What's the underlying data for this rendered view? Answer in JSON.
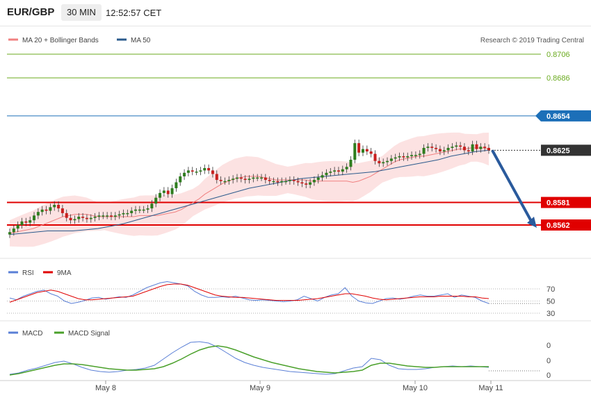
{
  "header": {
    "symbol": "EUR/GBP",
    "timeframe": "30 MIN",
    "time": "12:52:57 CET"
  },
  "legend_main": [
    {
      "name": "MA 20 + Bollinger Bands",
      "color": "#f08080"
    },
    {
      "name": "MA 50",
      "color": "#2a5a8c"
    }
  ],
  "copyright": "Research © 2019 Trading Central",
  "legend_rsi": [
    {
      "name": "RSI",
      "color": "#5a7fd6"
    },
    {
      "name": "9MA",
      "color": "#e00000"
    }
  ],
  "legend_macd": [
    {
      "name": "MACD",
      "color": "#5a7fd6"
    },
    {
      "name": "MACD Signal",
      "color": "#4aa02a"
    }
  ],
  "chart_data": [
    {
      "type": "candlestick",
      "y_axis_levels": [
        {
          "value": "0.8706",
          "color": "#6aaa1e",
          "style": "target"
        },
        {
          "value": "0.8686",
          "color": "#6aaa1e",
          "style": "target"
        },
        {
          "value": "0.8654",
          "color": "#1c6fb8",
          "style": "pivot"
        },
        {
          "value": "0.8625",
          "color": "#333333",
          "style": "last-price"
        },
        {
          "value": "0.8581",
          "color": "#e00000",
          "style": "support"
        },
        {
          "value": "0.8562",
          "color": "#e00000",
          "style": "support"
        }
      ],
      "x_labels": [
        "May 8",
        "May 9",
        "May 10",
        "May 11"
      ],
      "last_price": 0.8625,
      "forecast_arrow": {
        "from": 0.8625,
        "to": 0.8562,
        "color": "#2a5a9c"
      },
      "closes": [
        0.8556,
        0.8559,
        0.8562,
        0.8565,
        0.8564,
        0.8566,
        0.857,
        0.8573,
        0.8575,
        0.8574,
        0.8577,
        0.8579,
        0.8576,
        0.8572,
        0.8568,
        0.8566,
        0.8567,
        0.8569,
        0.8568,
        0.8567,
        0.8568,
        0.8569,
        0.857,
        0.857,
        0.857,
        0.8569,
        0.857,
        0.8571,
        0.8572,
        0.8572,
        0.8574,
        0.8575,
        0.8575,
        0.8575,
        0.8576,
        0.858,
        0.8585,
        0.8589,
        0.8591,
        0.8588,
        0.8593,
        0.8598,
        0.8603,
        0.8606,
        0.8608,
        0.8607,
        0.8607,
        0.8608,
        0.861,
        0.8608,
        0.8605,
        0.86,
        0.8599,
        0.8599,
        0.86,
        0.8601,
        0.8602,
        0.8601,
        0.86,
        0.8601,
        0.8602,
        0.8602,
        0.8602,
        0.86,
        0.8599,
        0.8599,
        0.8598,
        0.8599,
        0.8599,
        0.86,
        0.8599,
        0.8598,
        0.8597,
        0.8596,
        0.8598,
        0.86,
        0.8602,
        0.8604,
        0.8606,
        0.8607,
        0.8608,
        0.8607,
        0.8609,
        0.8611,
        0.8617,
        0.8631,
        0.8623,
        0.8626,
        0.8624,
        0.8622,
        0.8616,
        0.8614,
        0.8615,
        0.8616,
        0.8618,
        0.8619,
        0.862,
        0.8619,
        0.862,
        0.8621,
        0.8621,
        0.8622,
        0.8627,
        0.8628,
        0.8627,
        0.8626,
        0.8624,
        0.8625,
        0.8627,
        0.8628,
        0.8629,
        0.8628,
        0.8625,
        0.8624,
        0.863,
        0.8626,
        0.8628,
        0.8627,
        0.8625
      ],
      "ma20": [
        0.8555,
        0.8556,
        0.8557,
        0.8558,
        0.8559,
        0.8561,
        0.8563,
        0.8565,
        0.8567,
        0.8569,
        0.857,
        0.8571,
        0.8571,
        0.8571,
        0.857,
        0.8569,
        0.8569,
        0.8569,
        0.8569,
        0.8569,
        0.8569,
        0.8569,
        0.857,
        0.857,
        0.857,
        0.857,
        0.8571,
        0.8572,
        0.8573,
        0.8575,
        0.8578,
        0.8581,
        0.8584,
        0.8588,
        0.8591,
        0.8594,
        0.8597,
        0.8599,
        0.8601,
        0.8602,
        0.8603,
        0.8603,
        0.8603,
        0.8602,
        0.8601,
        0.86,
        0.86,
        0.86,
        0.86,
        0.86,
        0.86,
        0.8599,
        0.8599,
        0.8599,
        0.8599,
        0.8599,
        0.8599,
        0.8599,
        0.8598,
        0.8599,
        0.8601,
        0.8603,
        0.8606,
        0.8609,
        0.8612,
        0.8615,
        0.8617,
        0.8618,
        0.8619,
        0.862,
        0.862,
        0.8621,
        0.8622,
        0.8623,
        0.8624,
        0.8625,
        0.8626,
        0.8626,
        0.8627,
        0.8627,
        0.8627,
        0.8626
      ],
      "ma50": [
        0.8554,
        0.8555,
        0.8556,
        0.8557,
        0.8557,
        0.8557,
        0.8558,
        0.8559,
        0.8561,
        0.8563,
        0.8566,
        0.8569,
        0.8572,
        0.8575,
        0.8578,
        0.8581,
        0.8584,
        0.8587,
        0.859,
        0.8593,
        0.8595,
        0.8597,
        0.8599,
        0.8601,
        0.8602,
        0.8603,
        0.8604,
        0.8605,
        0.8606,
        0.8607,
        0.8609,
        0.8611,
        0.8613,
        0.8615,
        0.8617,
        0.862,
        0.8622,
        0.8624,
        0.8625
      ],
      "rsi": [
        55,
        52,
        58,
        62,
        66,
        68,
        62,
        58,
        50,
        46,
        48,
        51,
        55,
        56,
        53,
        55,
        57,
        56,
        60,
        66,
        72,
        76,
        80,
        82,
        80,
        78,
        75,
        66,
        60,
        56,
        56,
        57,
        56,
        58,
        55,
        52,
        51,
        52,
        51,
        50,
        49,
        50,
        52,
        58,
        54,
        50,
        56,
        60,
        62,
        72,
        58,
        50,
        47,
        46,
        50,
        54,
        55,
        53,
        55,
        58,
        60,
        58,
        58,
        60,
        62,
        56,
        60,
        58,
        56,
        50,
        46
      ],
      "rsi_ma": [
        48,
        52,
        56,
        60,
        64,
        66,
        68,
        66,
        62,
        58,
        54,
        52,
        52,
        53,
        54,
        55,
        56,
        57,
        58,
        62,
        66,
        70,
        74,
        77,
        78,
        78,
        76,
        72,
        68,
        64,
        60,
        58,
        57,
        56,
        56,
        55,
        54,
        53,
        52,
        51,
        51,
        51,
        51,
        52,
        53,
        54,
        56,
        58,
        60,
        62,
        62,
        60,
        58,
        55,
        53,
        52,
        53,
        54,
        55,
        56,
        57,
        57,
        57,
        58,
        58,
        58,
        58,
        57,
        57,
        55,
        54
      ],
      "rsi_levels": [
        "70",
        "50",
        "30"
      ],
      "macd": [
        -0.7,
        -0.5,
        -0.1,
        0.2,
        0.6,
        1.0,
        1.2,
        0.8,
        0.3,
        -0.1,
        -0.3,
        -0.4,
        -0.3,
        -0.1,
        0.0,
        0.2,
        0.6,
        1.5,
        2.4,
        3.2,
        3.9,
        4.0,
        3.8,
        3.2,
        2.4,
        1.6,
        1.0,
        0.6,
        0.3,
        0.1,
        -0.1,
        -0.3,
        -0.4,
        -0.5,
        -0.6,
        -0.7,
        -0.6,
        -0.2,
        0.2,
        0.4,
        1.6,
        1.4,
        0.6,
        0.1,
        0.0,
        0.0,
        0.1,
        0.3,
        0.4,
        0.5,
        0.4,
        0.5,
        0.4,
        0.3
      ],
      "macd_signal": [
        -0.8,
        -0.6,
        -0.3,
        0.0,
        0.3,
        0.6,
        0.8,
        0.8,
        0.7,
        0.5,
        0.3,
        0.1,
        0.0,
        -0.1,
        -0.1,
        0.0,
        0.1,
        0.4,
        0.9,
        1.5,
        2.2,
        2.8,
        3.2,
        3.4,
        3.2,
        2.8,
        2.3,
        1.8,
        1.4,
        1.0,
        0.7,
        0.4,
        0.1,
        -0.1,
        -0.3,
        -0.4,
        -0.5,
        -0.4,
        -0.3,
        -0.1,
        0.6,
        0.9,
        0.9,
        0.7,
        0.5,
        0.4,
        0.3,
        0.3,
        0.4,
        0.4,
        0.4,
        0.4,
        0.4,
        0.4
      ],
      "macd_levels": [
        "0",
        "0",
        "0"
      ]
    }
  ]
}
